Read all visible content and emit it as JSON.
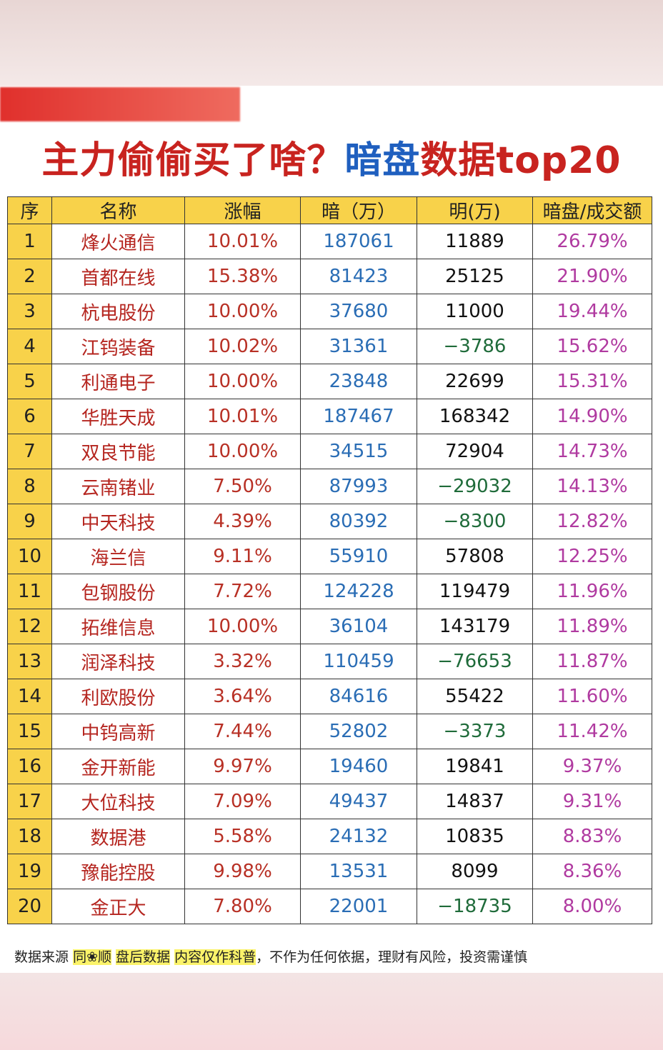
{
  "title": {
    "part1": "主力偷偷买了啥？",
    "part2": "暗盘",
    "part3": "数据top20"
  },
  "table": {
    "header": [
      "序",
      "名称",
      "涨幅",
      "暗（万）",
      "明(万)",
      "暗盘/成交额"
    ],
    "rows": [
      [
        "1",
        "烽火通信",
        "10.01%",
        "187061",
        "11889",
        "26.79%"
      ],
      [
        "2",
        "首都在线",
        "15.38%",
        "81423",
        "25125",
        "21.90%"
      ],
      [
        "3",
        "杭电股份",
        "10.00%",
        "37680",
        "11000",
        "19.44%"
      ],
      [
        "4",
        "江钨装备",
        "10.02%",
        "31361",
        "−3786",
        "15.62%"
      ],
      [
        "5",
        "利通电子",
        "10.00%",
        "23848",
        "22699",
        "15.31%"
      ],
      [
        "6",
        "华胜天成",
        "10.01%",
        "187467",
        "168342",
        "14.90%"
      ],
      [
        "7",
        "双良节能",
        "10.00%",
        "34515",
        "72904",
        "14.73%"
      ],
      [
        "8",
        "云南锗业",
        "7.50%",
        "87993",
        "−29032",
        "14.13%"
      ],
      [
        "9",
        "中天科技",
        "4.39%",
        "80392",
        "−8300",
        "12.82%"
      ],
      [
        "10",
        "海兰信",
        "9.11%",
        "55910",
        "57808",
        "12.25%"
      ],
      [
        "11",
        "包钢股份",
        "7.72%",
        "124228",
        "119479",
        "11.96%"
      ],
      [
        "12",
        "拓维信息",
        "10.00%",
        "36104",
        "143179",
        "11.89%"
      ],
      [
        "13",
        "润泽科技",
        "3.32%",
        "110459",
        "−76653",
        "11.87%"
      ],
      [
        "14",
        "利欧股份",
        "3.64%",
        "84616",
        "55422",
        "11.60%"
      ],
      [
        "15",
        "中钨高新",
        "7.44%",
        "52802",
        "−3373",
        "11.42%"
      ],
      [
        "16",
        "金开新能",
        "9.97%",
        "19460",
        "19841",
        "9.37%"
      ],
      [
        "17",
        "大位科技",
        "7.09%",
        "49437",
        "14837",
        "9.31%"
      ],
      [
        "18",
        "数据港",
        "5.58%",
        "24132",
        "10835",
        "8.83%"
      ],
      [
        "19",
        "豫能控股",
        "9.98%",
        "13531",
        "8099",
        "8.36%"
      ],
      [
        "20",
        "金正大",
        "7.80%",
        "22001",
        "−18735",
        "8.00%"
      ]
    ]
  },
  "footer": [
    "数据来源",
    "同❀顺",
    "盘后数据",
    "内容仅作科普",
    "，不作为任何依据，理财有风险，投资需谨慎"
  ]
}
